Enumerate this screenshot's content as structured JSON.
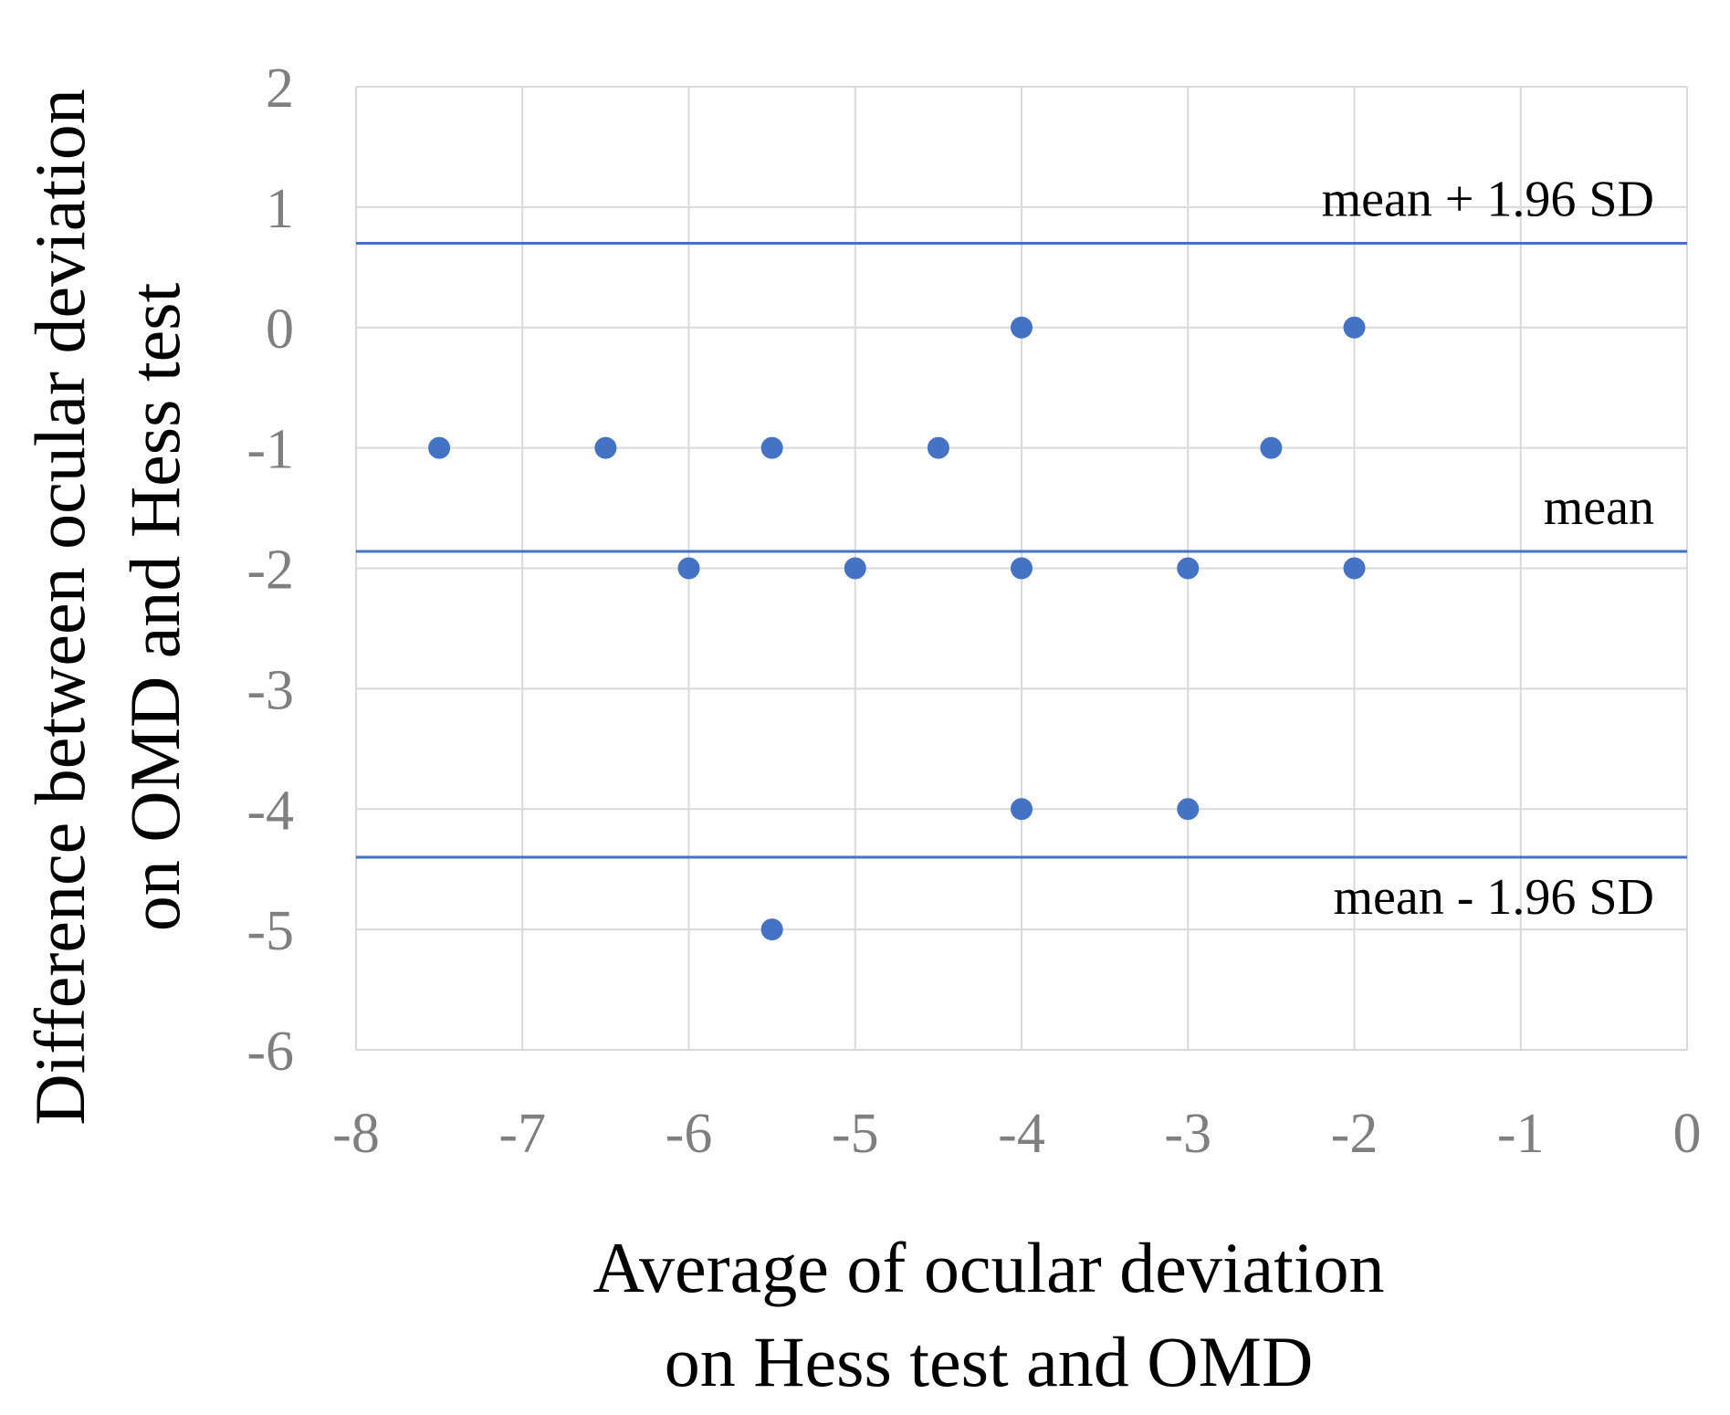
{
  "chart_data": {
    "type": "scatter",
    "xlabel_lines": [
      "Average of ocular deviation",
      "on Hess test and OMD"
    ],
    "ylabel_lines": [
      "Difference between ocular deviation",
      "on OMD and Hess test"
    ],
    "xlim": [
      -8,
      0
    ],
    "ylim": [
      -6,
      2
    ],
    "xticks": [
      -8,
      -7,
      -6,
      -5,
      -4,
      -3,
      -2,
      -1,
      0
    ],
    "yticks": [
      2,
      1,
      0,
      -1,
      -2,
      -3,
      -4,
      -5,
      -6
    ],
    "grid": true,
    "points": [
      {
        "x": -4,
        "y": 0
      },
      {
        "x": -2,
        "y": 0
      },
      {
        "x": -7.5,
        "y": -1
      },
      {
        "x": -6.5,
        "y": -1
      },
      {
        "x": -5.5,
        "y": -1
      },
      {
        "x": -4.5,
        "y": -1
      },
      {
        "x": -2.5,
        "y": -1
      },
      {
        "x": -6,
        "y": -2
      },
      {
        "x": -5,
        "y": -2
      },
      {
        "x": -4,
        "y": -2
      },
      {
        "x": -3,
        "y": -2
      },
      {
        "x": -2,
        "y": -2
      },
      {
        "x": -4,
        "y": -4
      },
      {
        "x": -3,
        "y": -4
      },
      {
        "x": -5.5,
        "y": -5
      }
    ],
    "reference_lines": [
      {
        "label": "mean + 1.96 SD",
        "y": 0.7
      },
      {
        "label": "mean",
        "y": -1.86
      },
      {
        "label": "mean - 1.96 SD",
        "y": -4.4
      }
    ],
    "colors": {
      "point": "#4472c4",
      "reference_line": "#4472c4",
      "grid": "#d9d9d9",
      "tick_text": "#7f7f7f",
      "title_text": "#000000"
    }
  }
}
